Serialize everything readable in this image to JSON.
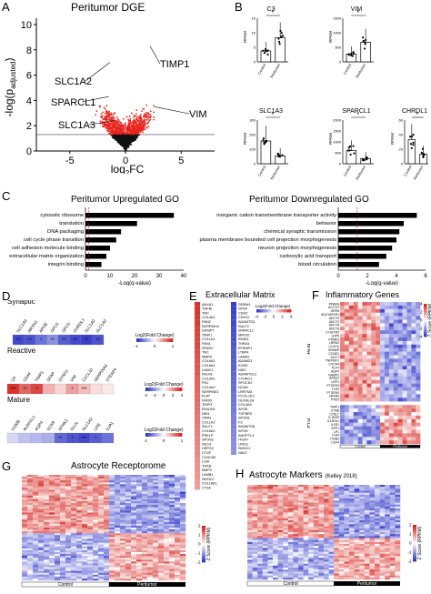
{
  "panels": {
    "A": {
      "letter": "A",
      "title": "Peritumor DGE",
      "ylabel": "-log(p",
      "ylabel_sub": "adjusted",
      "ylabel_end": ")",
      "xlabel": "log",
      "xlabel_sub": "2",
      "xlabel_end": "FC",
      "yticks": [
        "0",
        "2",
        "4",
        "6",
        "8",
        "10"
      ],
      "xticks": [
        "-5",
        "0",
        "5"
      ],
      "genes": [
        "TIMP1",
        "SLC1A2",
        "SPARCL1",
        "SLC1A3",
        "VIM"
      ]
    },
    "B": {
      "letter": "B",
      "groups": [
        "Control",
        "Peritumor"
      ],
      "plots": [
        {
          "gene": "C3",
          "yticks": [
            "0",
            "5",
            "10",
            "15"
          ],
          "ylabel": "RPKM",
          "sig": "*"
        },
        {
          "gene": "VIM",
          "yticks": [
            "0",
            "500",
            "1000",
            "1500"
          ],
          "ylabel": "RPKM",
          "sig": "*"
        },
        {
          "gene": "SLC1A3",
          "yticks": [
            "0",
            "100",
            "200",
            "300"
          ],
          "ylabel": "RPKM",
          "sig": "*"
        },
        {
          "gene": "SPARCL1",
          "yticks": [
            "0",
            "500",
            "1000",
            "1500",
            "2000"
          ],
          "ylabel": "RPKM",
          "sig": "*"
        },
        {
          "gene": "CHRDL1",
          "yticks": [
            "0",
            "20",
            "40",
            "60"
          ],
          "ylabel": "RPKM",
          "sig": "*"
        }
      ]
    },
    "C": {
      "letter": "C",
      "up": {
        "title": "Peritumor Upregulated GO",
        "xlabel": "-Log(q-value)",
        "xticks": [
          "0",
          "10",
          "20",
          "30",
          "40"
        ],
        "terms": [
          "cytosolic ribosome",
          "translation",
          "DNA packaging",
          "cell cycle phase transition",
          "cell adhesion molecule binding",
          "extracellular matrix organization",
          "integrin binding"
        ]
      },
      "down": {
        "title": "Peritumor Downregulated GO",
        "xlabel": "-Log(q-value)",
        "xticks": [
          "0",
          "2",
          "4",
          "6"
        ],
        "terms": [
          "inorganic cation transmembrane transporter activity",
          "behavior",
          "chemical synaptic transmission",
          "plasma membrane bounded cell projection morphogenesis",
          "neuron projection morphogenesis",
          "carboxylic acid transport",
          "blood circulation"
        ]
      }
    },
    "D": {
      "letter": "D",
      "synaptic": {
        "title": "Synaptic",
        "genes": [
          "SLC1A3",
          "NRXN1",
          "APOE",
          "GPC5",
          "GPC5",
          "CHRDL1",
          "SLC1A2",
          "SLC1A2"
        ],
        "legend": "Log2(Fold Change)",
        "ticks": [
          "-1",
          "0",
          "1"
        ]
      },
      "reactive": {
        "title": "Reactive",
        "genes": [
          "CP",
          "CD44",
          "TIMP1",
          "GFAP",
          "SYNG1",
          "VIM",
          "CXCL10",
          "SERPINA3",
          "STEAP4"
        ],
        "legend": "Log2(Fold Change)",
        "ticks": [
          "-4",
          "-2",
          "0",
          "2",
          "4"
        ]
      },
      "mature": {
        "title": "Mature",
        "genes": [
          "S100B",
          "ALDH1L1",
          "AQP4",
          "SOX9",
          "NTRK2",
          "GLUL",
          "SLC1A2",
          "CPE",
          "GJA1"
        ],
        "legend": "Log2(Fold Change)",
        "ticks": [
          "-1",
          "0",
          "1"
        ]
      }
    },
    "E": {
      "letter": "E",
      "title": "Extracellular Matrix",
      "legend": "Log2(Fold Change)",
      "ticks": [
        "-4",
        "-2",
        "0",
        "2",
        "4"
      ],
      "left_genes": [
        "ANXA1",
        "TGFBI",
        "TNC",
        "COL4A1",
        "FBN2",
        "SERPINH1",
        "IGFBP7",
        "TIMP1",
        "COL1A1",
        "FBN1",
        "SPARC",
        "TNC",
        "MMP9",
        "COL6A1",
        "COL5A1",
        "LAMC1",
        "FBLN1",
        "COL3A1",
        "FN1",
        "COL4A2",
        "SERPINE1",
        "PLAT",
        "FMOD",
        "TIMP3",
        "EMILIN1",
        "NID1",
        "VWA1",
        "COL1A2",
        "SULF1",
        "COL6A2",
        "PRELP",
        "SPON2",
        "SDC4",
        "HSPG2",
        "CTGF",
        "CCDC80",
        "LUM",
        "TNXB",
        "MMP2",
        "LAMB1",
        "SMOC2",
        "COL18A1",
        "CTSK"
      ],
      "right_genes": [
        "GREM1",
        "NTN4",
        "CDH2",
        "CDH11",
        "ADAMTS3",
        "SULF2",
        "SPARCL1",
        "MATN2",
        "EMID1",
        "THBS4",
        "EFEMP1",
        "LTBP4",
        "LAMA2",
        "ADAM23",
        "ECM2",
        "NID2",
        "ADAMTSL3",
        "CTHRC1",
        "SPOCK2",
        "NCAN",
        "LRRTM3",
        "PCOLCE2",
        "OLFML2A",
        "COL4A5",
        "APOE",
        "TGFBR3",
        "SPON1",
        "F3",
        "ADAMTS8",
        "APOD",
        "ANGPTL4",
        "ITGA7",
        "LRIG1",
        "SMOC1",
        "NAV2"
      ]
    },
    "F": {
      "letter": "F",
      "title": "Inflammatory Genes",
      "legend": "Z Score (RPKM)",
      "ticks": [
        "-4",
        "-2",
        "0",
        "2",
        "4"
      ],
      "groups": [
        "Anti",
        "Pro"
      ],
      "conditions": [
        "Control",
        "Peritumor"
      ],
      "anti_genes": [
        "PPARA",
        "ACCYO",
        "GRPA",
        "ADCYAP1R1",
        "ADCY5",
        "ADCY2",
        "ADCY8",
        "ADCY6",
        "CYSLTR2",
        "LRP5",
        "PPARG",
        "LRRN3",
        "CLOCK",
        "GRAMP",
        "CCND1",
        "ACCY",
        "TNFRSF1",
        "CXCR4",
        "KLF4",
        "AQP4",
        "RAMP1",
        "GPR37",
        "LRP1",
        "PTGER3",
        "TLR3",
        "PTGER4",
        "NFKB3",
        "PTEN"
      ],
      "pro_genes": [
        "TIMP1",
        "CYBB",
        "CYSLT",
        "IL1RAP",
        "IL13RA1",
        "IL1R1",
        "SPP1",
        "LPL",
        "TLR4",
        "ITGB2",
        "CD44"
      ]
    },
    "G": {
      "letter": "G",
      "title": "Astrocyte Receptorome",
      "legend": "Z Score (RPKM)",
      "ticks": [
        "-2",
        "-1",
        "0",
        "1",
        "2"
      ],
      "conditions": [
        "Control",
        "Peritumor"
      ]
    },
    "H": {
      "letter": "H",
      "title": "Astrocyte Markers",
      "title_ref": "(Kelley 2018)",
      "legend": "Z Score (RPKM)",
      "ticks": [
        "-2",
        "-1",
        "0",
        "1",
        "2"
      ],
      "conditions": [
        "Control",
        "Peritumor"
      ]
    }
  },
  "colors": {
    "sig_red": "#e8261f",
    "nonsig": "#111111",
    "heat_red": "#d7261f",
    "heat_blue": "#2c35c8",
    "heat_white": "#ffffff",
    "bar": "#000000"
  }
}
